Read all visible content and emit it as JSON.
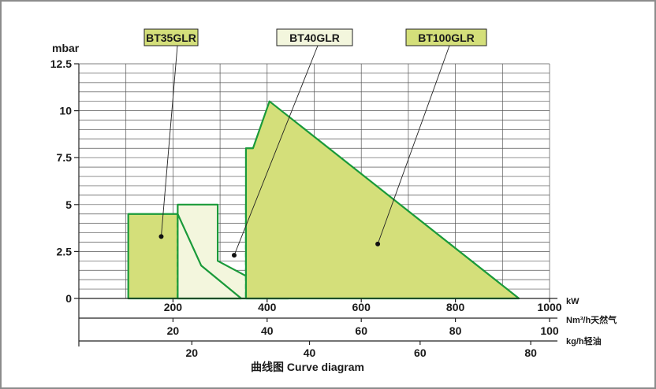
{
  "chart_data": {
    "type": "area",
    "title": "",
    "caption": "曲线图 Curve diagram",
    "y_axis": {
      "unit": "mbar",
      "range": [
        0,
        12.5
      ],
      "ticks": [
        "0",
        "2.5",
        "5",
        "7.5",
        "10",
        "12.5"
      ],
      "minor_grid_step": 0.5
    },
    "x_axes": [
      {
        "unit": "kW",
        "range": [
          0,
          1000
        ],
        "ticks": [
          {
            "v": 200,
            "t": "200"
          },
          {
            "v": 400,
            "t": "400"
          },
          {
            "v": 600,
            "t": "600"
          },
          {
            "v": 800,
            "t": "800"
          },
          {
            "v": 1000,
            "t": "1000"
          }
        ]
      },
      {
        "unit": "Nm³/h天然气",
        "ticks": [
          {
            "v": 200,
            "t": "20"
          },
          {
            "v": 400,
            "t": "40"
          },
          {
            "v": 600,
            "t": "60"
          },
          {
            "v": 800,
            "t": "80"
          },
          {
            "v": 1000,
            "t": "100"
          }
        ]
      },
      {
        "unit": "kg/h轻油",
        "ticks": [
          {
            "v": 240,
            "t": "20"
          },
          {
            "v": 490,
            "t": "40"
          },
          {
            "v": 725,
            "t": "60"
          },
          {
            "v": 960,
            "t": "80"
          }
        ]
      }
    ],
    "grid": true,
    "series": [
      {
        "name": "BT35GLR",
        "color": "#d4df7a",
        "points": [
          [
            105,
            0
          ],
          [
            105,
            4.5
          ],
          [
            210,
            4.5
          ],
          [
            260,
            1.75
          ],
          [
            345,
            0
          ]
        ],
        "dashed_x": 210,
        "label_point": [
          175,
          3.3
        ]
      },
      {
        "name": "BT40GLR",
        "color": "#f3f6dd",
        "points": [
          [
            210,
            0
          ],
          [
            210,
            5
          ],
          [
            295,
            5
          ],
          [
            295,
            2
          ],
          [
            445,
            0
          ]
        ],
        "dashed_x": 355,
        "label_point": [
          330,
          2.3
        ]
      },
      {
        "name": "BT100GLR",
        "color": "#d4df7a",
        "points": [
          [
            355,
            0
          ],
          [
            355,
            8
          ],
          [
            370,
            8
          ],
          [
            405,
            10.5
          ],
          [
            935,
            0
          ]
        ],
        "label_point": [
          635,
          2.9
        ]
      }
    ]
  }
}
